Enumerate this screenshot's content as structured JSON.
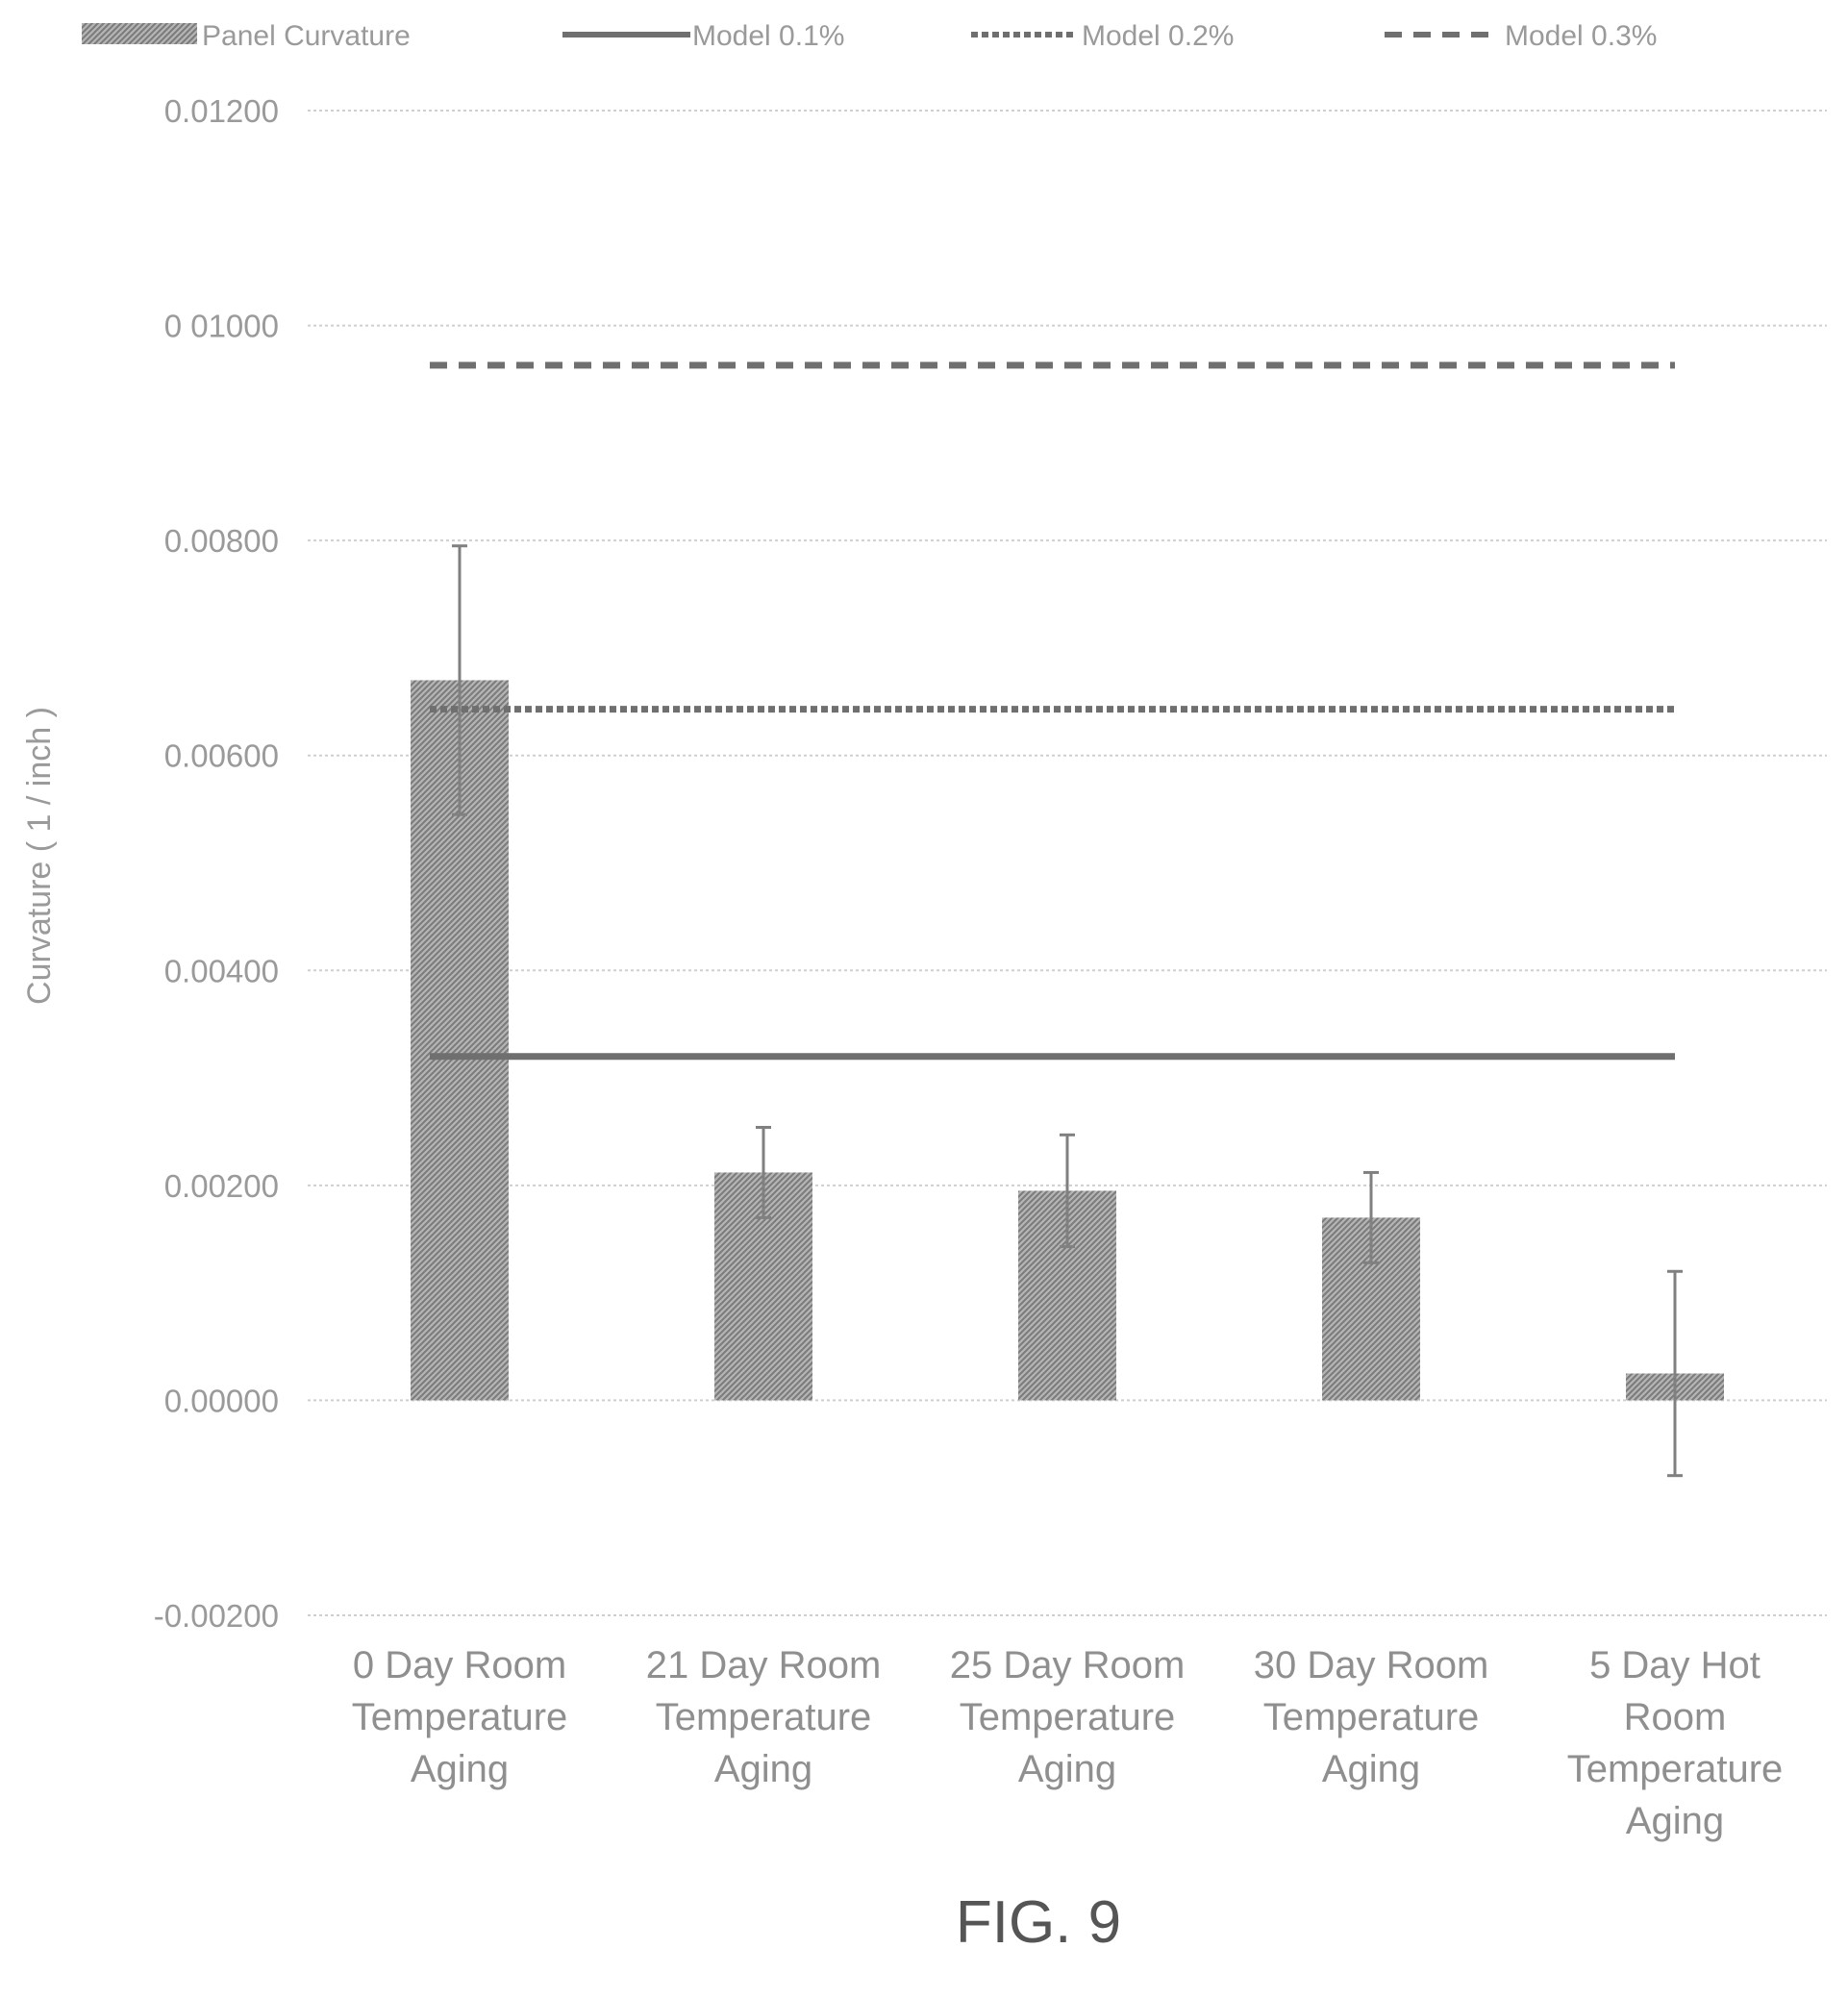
{
  "figure_label": "FIG. 9",
  "chart_data": {
    "type": "bar",
    "title": "",
    "xlabel": "",
    "ylabel": "Curvature ( 1 / inch )",
    "ylim": [
      -0.002,
      0.012
    ],
    "yticks": [
      -0.002,
      0,
      0.002,
      0.004,
      0.006,
      0.008,
      0.01,
      0.012
    ],
    "ytick_labels": [
      "-0.00200",
      "0.00000",
      "0.00200",
      "0.00400",
      "0.00600",
      "0.00800",
      "0 01000",
      "0.01200"
    ],
    "grid": true,
    "legend_position": "top",
    "categories": [
      [
        "0 Day Room",
        "Temperature",
        "Aging"
      ],
      [
        "21 Day Room",
        "Temperature",
        "Aging"
      ],
      [
        "25 Day Room",
        "Temperature",
        "Aging"
      ],
      [
        "30 Day Room",
        "Temperature",
        "Aging"
      ],
      [
        "5 Day Hot",
        "Room",
        "Temperature",
        "Aging"
      ]
    ],
    "series": [
      {
        "name": "Panel Curvature",
        "kind": "bar",
        "values": [
          0.0067,
          0.00212,
          0.00195,
          0.0017,
          0.00025
        ],
        "error": [
          0.00125,
          0.00042,
          0.00052,
          0.00042,
          0.00095
        ],
        "color": "#8a8a8a"
      },
      {
        "name": "Model 0.1%",
        "kind": "line",
        "style": "solid",
        "value": 0.0032,
        "color": "#6f6f6f"
      },
      {
        "name": "Model 0.2%",
        "kind": "line",
        "style": "dotted",
        "value": 0.00643,
        "color": "#6f6f6f"
      },
      {
        "name": "Model 0.3%",
        "kind": "line",
        "style": "dashed",
        "value": 0.00963,
        "color": "#6f6f6f"
      }
    ]
  }
}
